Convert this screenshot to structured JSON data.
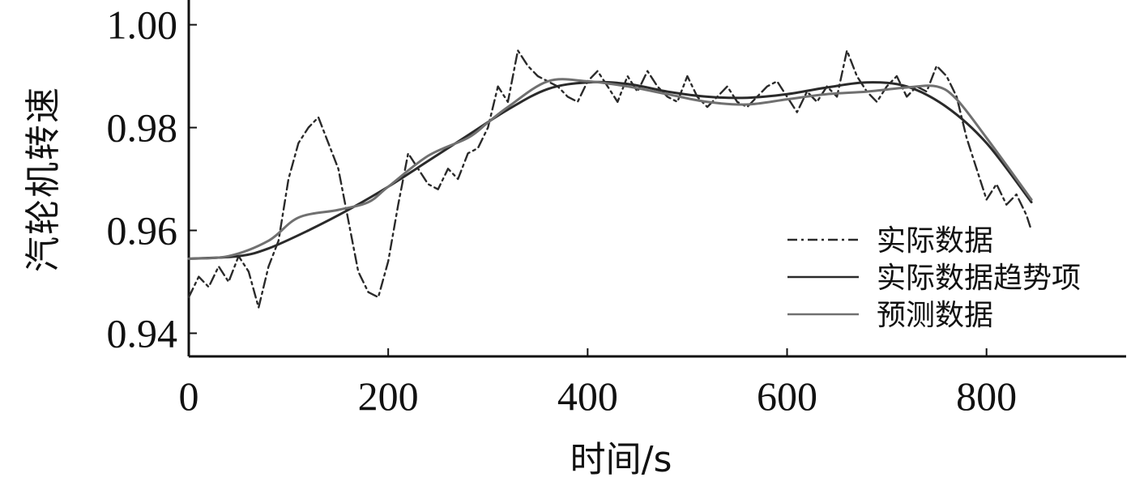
{
  "chart_data": {
    "type": "line",
    "xlabel": "时间/s",
    "ylabel": "汽轮机转速",
    "xlim": [
      0,
      940
    ],
    "ylim": [
      0.9355,
      1.0045
    ],
    "x_ticks": [
      0,
      200,
      400,
      600,
      800
    ],
    "x_tick_labels": [
      "0",
      "200",
      "400",
      "600",
      "800"
    ],
    "y_ticks": [
      0.94,
      0.96,
      0.98,
      1.0
    ],
    "y_tick_labels": [
      "0.94",
      "0.96",
      "0.98",
      "1.00"
    ],
    "grid": false,
    "legend_position": "bottom-right",
    "series": [
      {
        "name": "实际数据",
        "style": "dash-dot",
        "color": "#2a2a2a",
        "x": [
          0,
          10,
          20,
          30,
          40,
          50,
          60,
          70,
          80,
          90,
          100,
          110,
          120,
          130,
          140,
          150,
          160,
          170,
          180,
          190,
          200,
          210,
          220,
          230,
          240,
          250,
          260,
          270,
          280,
          290,
          300,
          310,
          320,
          330,
          340,
          350,
          360,
          370,
          380,
          390,
          400,
          410,
          420,
          430,
          440,
          450,
          460,
          470,
          480,
          490,
          500,
          510,
          520,
          530,
          540,
          550,
          560,
          570,
          580,
          590,
          600,
          610,
          620,
          630,
          640,
          650,
          660,
          670,
          680,
          690,
          700,
          710,
          720,
          730,
          740,
          750,
          760,
          770,
          780,
          790,
          800,
          810,
          820,
          830,
          840,
          845
        ],
        "y": [
          0.947,
          0.951,
          0.949,
          0.953,
          0.95,
          0.955,
          0.952,
          0.945,
          0.953,
          0.958,
          0.97,
          0.977,
          0.98,
          0.982,
          0.977,
          0.972,
          0.962,
          0.952,
          0.948,
          0.947,
          0.954,
          0.965,
          0.975,
          0.972,
          0.969,
          0.968,
          0.972,
          0.97,
          0.975,
          0.976,
          0.98,
          0.988,
          0.985,
          0.995,
          0.992,
          0.99,
          0.989,
          0.988,
          0.986,
          0.985,
          0.989,
          0.991,
          0.988,
          0.985,
          0.99,
          0.987,
          0.991,
          0.988,
          0.986,
          0.985,
          0.99,
          0.986,
          0.984,
          0.986,
          0.988,
          0.985,
          0.984,
          0.986,
          0.988,
          0.989,
          0.986,
          0.983,
          0.987,
          0.985,
          0.988,
          0.986,
          0.995,
          0.99,
          0.987,
          0.985,
          0.988,
          0.99,
          0.986,
          0.988,
          0.987,
          0.992,
          0.99,
          0.986,
          0.978,
          0.972,
          0.966,
          0.969,
          0.965,
          0.967,
          0.963,
          0.96
        ]
      },
      {
        "name": "实际数据趋势项",
        "style": "solid",
        "color": "#2a2a2a",
        "x": [
          0,
          50,
          80,
          120,
          160,
          200,
          240,
          280,
          320,
          360,
          400,
          440,
          480,
          520,
          560,
          600,
          640,
          680,
          720,
          760,
          800,
          845
        ],
        "y": [
          0.9545,
          0.955,
          0.9565,
          0.96,
          0.964,
          0.9685,
          0.9735,
          0.9785,
          0.9835,
          0.9875,
          0.9888,
          0.9885,
          0.987,
          0.986,
          0.9858,
          0.9865,
          0.9878,
          0.9888,
          0.988,
          0.984,
          0.977,
          0.9655
        ]
      },
      {
        "name": "预测数据",
        "style": "solid",
        "color": "#707070",
        "x": [
          0,
          40,
          80,
          110,
          150,
          180,
          200,
          240,
          280,
          300,
          320,
          360,
          400,
          440,
          480,
          520,
          560,
          600,
          640,
          680,
          720,
          750,
          770,
          800,
          845
        ],
        "y": [
          0.9545,
          0.955,
          0.958,
          0.9625,
          0.964,
          0.9655,
          0.9685,
          0.9745,
          0.978,
          0.981,
          0.984,
          0.989,
          0.989,
          0.988,
          0.9865,
          0.985,
          0.9845,
          0.9855,
          0.9865,
          0.987,
          0.9878,
          0.988,
          0.9855,
          0.978,
          0.966
        ]
      }
    ]
  }
}
